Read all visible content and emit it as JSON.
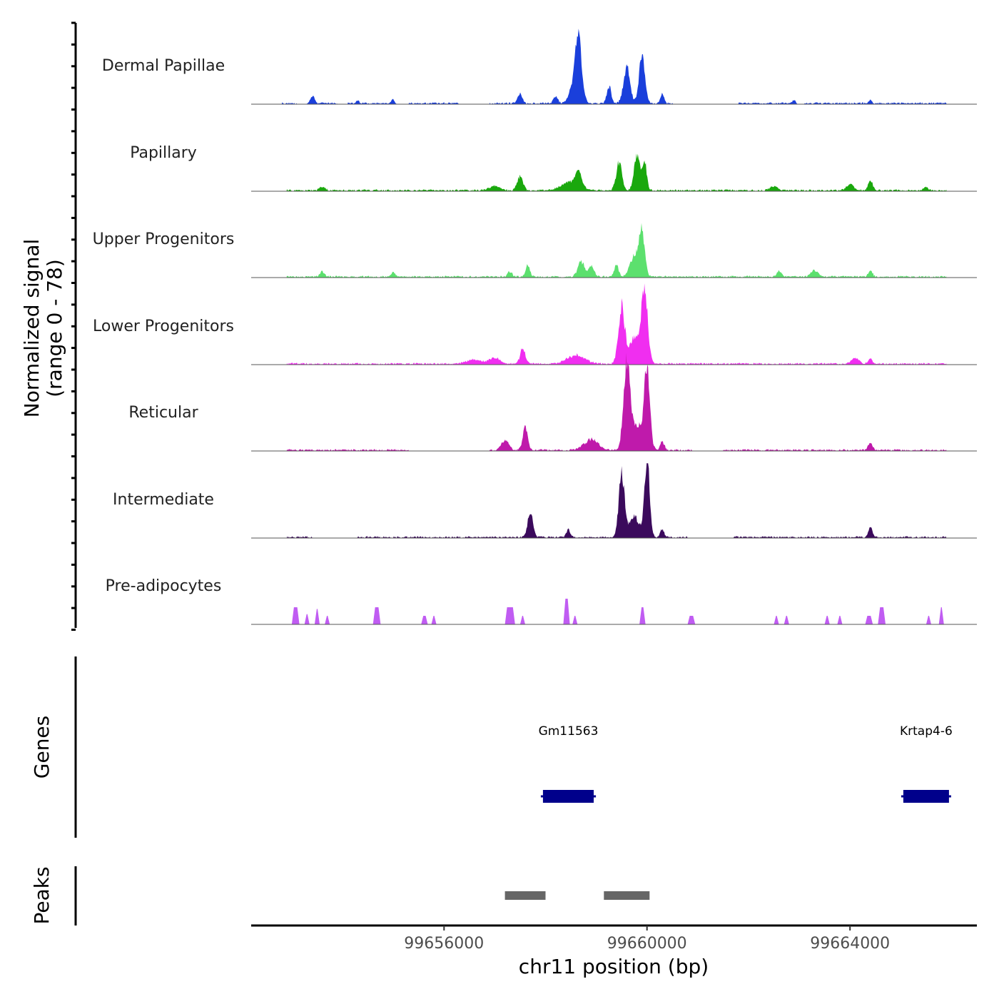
{
  "chart_data": {
    "type": "area",
    "title": "",
    "ylabel_line1": "Normalized signal",
    "ylabel_line2": "(range 0 - 78)",
    "xlabel": "chr11 position (bp)",
    "genes_label": "Genes",
    "peaks_label": "Peaks",
    "ymax": 78,
    "xlim": [
      99652200,
      99666500
    ],
    "xticks": [
      99656000,
      99660000,
      99664000
    ],
    "xtick_labels": [
      "99656000",
      "99660000",
      "99664000"
    ],
    "tracks": [
      {
        "name": "Dermal Papillae",
        "color": "#1a3fdb",
        "scale": 1.0,
        "noise_start": 99652800,
        "noise_end": 99665900,
        "gaps": [
          [
            99653100,
            99653400
          ],
          [
            99653900,
            99654100
          ],
          [
            99655000,
            99655300
          ],
          [
            99656300,
            99656900
          ],
          [
            99660500,
            99661800
          ],
          [
            99662900,
            99663100
          ]
        ],
        "peaks": [
          {
            "pos": 99653400,
            "height": 9,
            "width": 60
          },
          {
            "pos": 99654300,
            "height": 4,
            "width": 40
          },
          {
            "pos": 99655000,
            "height": 5,
            "width": 40
          },
          {
            "pos": 99657500,
            "height": 12,
            "width": 60
          },
          {
            "pos": 99658200,
            "height": 8,
            "width": 60
          },
          {
            "pos": 99658650,
            "height": 56,
            "width": 80
          },
          {
            "pos": 99658600,
            "height": 30,
            "width": 140
          },
          {
            "pos": 99659250,
            "height": 20,
            "width": 60
          },
          {
            "pos": 99659600,
            "height": 42,
            "width": 90
          },
          {
            "pos": 99659900,
            "height": 55,
            "width": 80
          },
          {
            "pos": 99660300,
            "height": 10,
            "width": 50
          },
          {
            "pos": 99662900,
            "height": 5,
            "width": 40
          },
          {
            "pos": 99664400,
            "height": 4,
            "width": 40
          }
        ]
      },
      {
        "name": "Papillary",
        "color": "#1aa80d",
        "scale": 1.0,
        "noise_start": 99652900,
        "noise_end": 99665900,
        "gaps": [],
        "peaks": [
          {
            "pos": 99653600,
            "height": 4,
            "width": 80
          },
          {
            "pos": 99657000,
            "height": 5,
            "width": 150
          },
          {
            "pos": 99657500,
            "height": 16,
            "width": 80
          },
          {
            "pos": 99658500,
            "height": 10,
            "width": 250
          },
          {
            "pos": 99658650,
            "height": 16,
            "width": 80
          },
          {
            "pos": 99659450,
            "height": 33,
            "width": 80
          },
          {
            "pos": 99659800,
            "height": 42,
            "width": 80
          },
          {
            "pos": 99659950,
            "height": 35,
            "width": 60
          },
          {
            "pos": 99662500,
            "height": 5,
            "width": 100
          },
          {
            "pos": 99664000,
            "height": 7,
            "width": 100
          },
          {
            "pos": 99664400,
            "height": 12,
            "width": 60
          },
          {
            "pos": 99665500,
            "height": 4,
            "width": 60
          }
        ]
      },
      {
        "name": "Upper Progenitors",
        "color": "#5ce06e",
        "scale": 1.0,
        "noise_start": 99652900,
        "noise_end": 99665900,
        "gaps": [],
        "peaks": [
          {
            "pos": 99653600,
            "height": 6,
            "width": 60
          },
          {
            "pos": 99655000,
            "height": 5,
            "width": 60
          },
          {
            "pos": 99657300,
            "height": 6,
            "width": 60
          },
          {
            "pos": 99657650,
            "height": 14,
            "width": 60
          },
          {
            "pos": 99658700,
            "height": 18,
            "width": 90
          },
          {
            "pos": 99658900,
            "height": 12,
            "width": 80
          },
          {
            "pos": 99659400,
            "height": 13,
            "width": 60
          },
          {
            "pos": 99659900,
            "height": 50,
            "width": 80
          },
          {
            "pos": 99659750,
            "height": 24,
            "width": 120
          },
          {
            "pos": 99662600,
            "height": 7,
            "width": 60
          },
          {
            "pos": 99663300,
            "height": 7,
            "width": 100
          },
          {
            "pos": 99664400,
            "height": 7,
            "width": 60
          }
        ]
      },
      {
        "name": "Lower Progenitors",
        "color": "#f02ef0",
        "scale": 1.0,
        "noise_start": 99652900,
        "noise_end": 99665900,
        "gaps": [],
        "peaks": [
          {
            "pos": 99656600,
            "height": 5,
            "width": 200
          },
          {
            "pos": 99657000,
            "height": 7,
            "width": 150
          },
          {
            "pos": 99657550,
            "height": 18,
            "width": 70
          },
          {
            "pos": 99658600,
            "height": 10,
            "width": 250
          },
          {
            "pos": 99659500,
            "height": 66,
            "width": 90
          },
          {
            "pos": 99659950,
            "height": 85,
            "width": 90
          },
          {
            "pos": 99659750,
            "height": 30,
            "width": 130
          },
          {
            "pos": 99664100,
            "height": 7,
            "width": 100
          },
          {
            "pos": 99664400,
            "height": 6,
            "width": 60
          }
        ]
      },
      {
        "name": "Reticular",
        "color": "#bf1aab",
        "scale": 1.0,
        "noise_start": 99652900,
        "noise_end": 99665900,
        "gaps": [
          [
            99655300,
            99656900
          ],
          [
            99660900,
            99661500
          ]
        ],
        "peaks": [
          {
            "pos": 99657200,
            "height": 12,
            "width": 100
          },
          {
            "pos": 99657600,
            "height": 26,
            "width": 70
          },
          {
            "pos": 99658900,
            "height": 12,
            "width": 200
          },
          {
            "pos": 99659600,
            "height": 105,
            "width": 90
          },
          {
            "pos": 99660000,
            "height": 90,
            "width": 80
          },
          {
            "pos": 99659800,
            "height": 30,
            "width": 140
          },
          {
            "pos": 99660300,
            "height": 10,
            "width": 60
          },
          {
            "pos": 99664400,
            "height": 9,
            "width": 60
          }
        ]
      },
      {
        "name": "Intermediate",
        "color": "#3b0a5c",
        "scale": 1.0,
        "noise_start": 99652900,
        "noise_end": 99665900,
        "gaps": [
          [
            99653400,
            99654300
          ],
          [
            99660800,
            99661700
          ]
        ],
        "peaks": [
          {
            "pos": 99657700,
            "height": 30,
            "width": 70
          },
          {
            "pos": 99658450,
            "height": 10,
            "width": 50
          },
          {
            "pos": 99659500,
            "height": 72,
            "width": 80
          },
          {
            "pos": 99660000,
            "height": 92,
            "width": 70
          },
          {
            "pos": 99659750,
            "height": 24,
            "width": 140
          },
          {
            "pos": 99660300,
            "height": 8,
            "width": 60
          },
          {
            "pos": 99664400,
            "height": 13,
            "width": 50
          }
        ]
      },
      {
        "name": "Pre-adipocytes",
        "color": "#c05cf2",
        "scale": 1.0,
        "noise_start": 99652900,
        "noise_end": 99665900,
        "gaps": [],
        "blocks": [
          {
            "start": 99653000,
            "end": 99653150,
            "height": 20
          },
          {
            "start": 99653250,
            "end": 99653350,
            "height": 12
          },
          {
            "start": 99653450,
            "end": 99653550,
            "height": 18
          },
          {
            "start": 99653650,
            "end": 99653750,
            "height": 10
          },
          {
            "start": 99654600,
            "end": 99654750,
            "height": 20
          },
          {
            "start": 99655550,
            "end": 99655680,
            "height": 10
          },
          {
            "start": 99655750,
            "end": 99655850,
            "height": 10
          },
          {
            "start": 99657200,
            "end": 99657400,
            "height": 20
          },
          {
            "start": 99657500,
            "end": 99657600,
            "height": 10
          },
          {
            "start": 99658350,
            "end": 99658480,
            "height": 30
          },
          {
            "start": 99658530,
            "end": 99658630,
            "height": 10
          },
          {
            "start": 99659850,
            "end": 99659970,
            "height": 20
          },
          {
            "start": 99660800,
            "end": 99660950,
            "height": 10
          },
          {
            "start": 99662500,
            "end": 99662600,
            "height": 10
          },
          {
            "start": 99662700,
            "end": 99662800,
            "height": 10
          },
          {
            "start": 99663500,
            "end": 99663600,
            "height": 10
          },
          {
            "start": 99663750,
            "end": 99663850,
            "height": 10
          },
          {
            "start": 99664300,
            "end": 99664450,
            "height": 10
          },
          {
            "start": 99664550,
            "end": 99664700,
            "height": 20
          },
          {
            "start": 99665500,
            "end": 99665600,
            "height": 10
          },
          {
            "start": 99665750,
            "end": 99665850,
            "height": 20
          }
        ]
      }
    ],
    "genes": [
      {
        "name": "Gm11563",
        "start": 99657950,
        "end": 99658950
      },
      {
        "name": "Krtap4-6",
        "start": 99665050,
        "end": 99665950
      }
    ],
    "peak_regions": [
      {
        "start": 99657200,
        "end": 99658000
      },
      {
        "start": 99659150,
        "end": 99660050
      }
    ]
  }
}
